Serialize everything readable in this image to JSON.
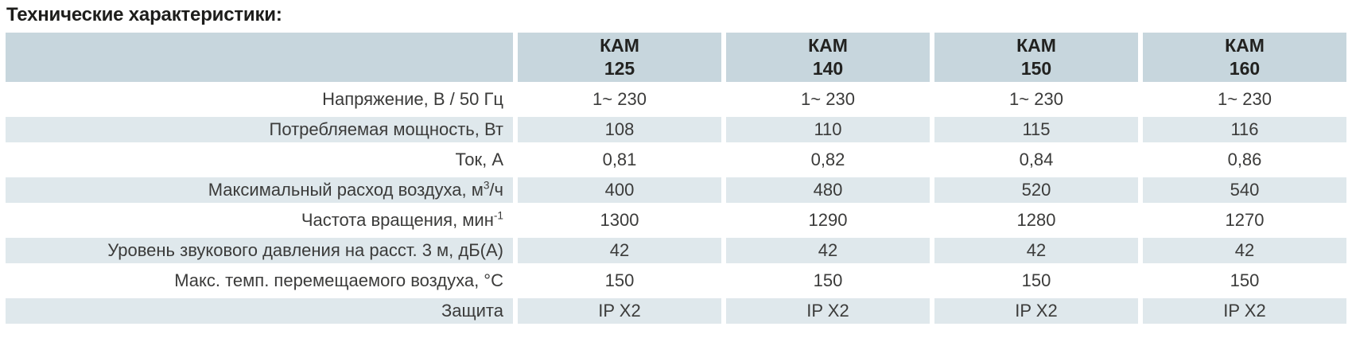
{
  "title": "Технические характеристики:",
  "table": {
    "columns": [
      {
        "brand": "КАМ",
        "model": "125"
      },
      {
        "brand": "КАМ",
        "model": "140"
      },
      {
        "brand": "КАМ",
        "model": "150"
      },
      {
        "brand": "КАМ",
        "model": "160"
      }
    ],
    "rows": [
      {
        "name": "voltage",
        "label_parts": [
          {
            "t": "Напряжение, В / 50 Гц"
          }
        ],
        "values": [
          "1~ 230",
          "1~ 230",
          "1~ 230",
          "1~ 230"
        ]
      },
      {
        "name": "power-consumption",
        "label_parts": [
          {
            "t": "Потребляемая мощность, Вт"
          }
        ],
        "values": [
          "108",
          "110",
          "115",
          "116"
        ]
      },
      {
        "name": "current",
        "label_parts": [
          {
            "t": "Ток, А"
          }
        ],
        "values": [
          "0,81",
          "0,82",
          "0,84",
          "0,86"
        ]
      },
      {
        "name": "max-airflow",
        "label_parts": [
          {
            "t": "Максимальный расход воздуха, м"
          },
          {
            "t": "3",
            "sup": true
          },
          {
            "t": "/ч"
          }
        ],
        "values": [
          "400",
          "480",
          "520",
          "540"
        ]
      },
      {
        "name": "rotation-speed",
        "label_parts": [
          {
            "t": "Частота вращения,  мин"
          },
          {
            "t": "-1",
            "sup": true
          }
        ],
        "values": [
          "1300",
          "1290",
          "1280",
          "1270"
        ]
      },
      {
        "name": "sound-pressure-level",
        "label_parts": [
          {
            "t": "Уровень звукового давления на расст. 3 м, дБ(А)"
          }
        ],
        "values": [
          "42",
          "42",
          "42",
          "42"
        ]
      },
      {
        "name": "max-air-temperature",
        "label_parts": [
          {
            "t": "Макс. темп. перемещаемого воздуха, °С"
          }
        ],
        "values": [
          "150",
          "150",
          "150",
          "150"
        ]
      },
      {
        "name": "protection",
        "label_parts": [
          {
            "t": "Защита"
          }
        ],
        "values": [
          "IP X2",
          "IP X2",
          "IP X2",
          "IP X2"
        ]
      }
    ],
    "colors": {
      "header_bg": "#c7d6dd",
      "alt_row_bg": "#dfe8ec",
      "text": "#3b3b3a",
      "title_text": "#1d1d1b"
    }
  }
}
